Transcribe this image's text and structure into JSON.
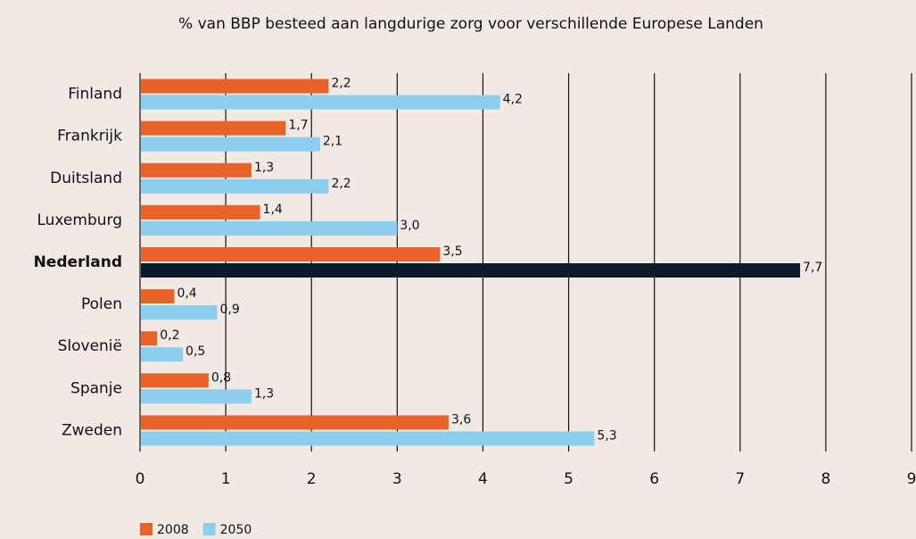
{
  "chart_data": {
    "type": "hbar",
    "title": "% van BBP besteed aan langdurige zorg voor verschillende Europese Landen",
    "categories": [
      "Finland",
      "Frankrijk",
      "Duitsland",
      "Luxemburg",
      "Nederland",
      "Polen",
      "Slovenië",
      "Spanje",
      "Zweden"
    ],
    "series": [
      {
        "name": "2008",
        "color": "#e8632a",
        "values": [
          2.2,
          1.7,
          1.3,
          1.4,
          3.5,
          0.4,
          0.2,
          0.8,
          3.6
        ],
        "value_labels": [
          "2,2",
          "1,7",
          "1,3",
          "1,4",
          "3,5",
          "0,4",
          "0,2",
          "0,8",
          "3,6"
        ]
      },
      {
        "name": "2050",
        "color": "#8dcdee",
        "values": [
          4.2,
          2.1,
          2.2,
          3.0,
          7.7,
          0.9,
          0.5,
          1.3,
          5.3
        ],
        "value_labels": [
          "4,2",
          "2,1",
          "2,2",
          "3,0",
          "7,7",
          "0,9",
          "0,5",
          "1,3",
          "5,3"
        ]
      }
    ],
    "highlight": {
      "category": "Nederland",
      "series": "2050",
      "color": "#0c1a2c"
    },
    "xlim": [
      0,
      9
    ],
    "xticks": [
      0,
      1,
      2,
      3,
      4,
      5,
      6,
      7,
      8,
      9
    ],
    "grid": true,
    "legend": "bottom-left"
  }
}
